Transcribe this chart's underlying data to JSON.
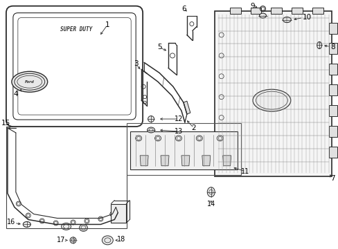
{
  "background_color": "#ffffff",
  "line_color": "#2a2a2a",
  "label_color": "#000000",
  "fig_width": 4.89,
  "fig_height": 3.6,
  "dpi": 100,
  "label_fontsize": 7.5,
  "label_fontsize_small": 7.0
}
